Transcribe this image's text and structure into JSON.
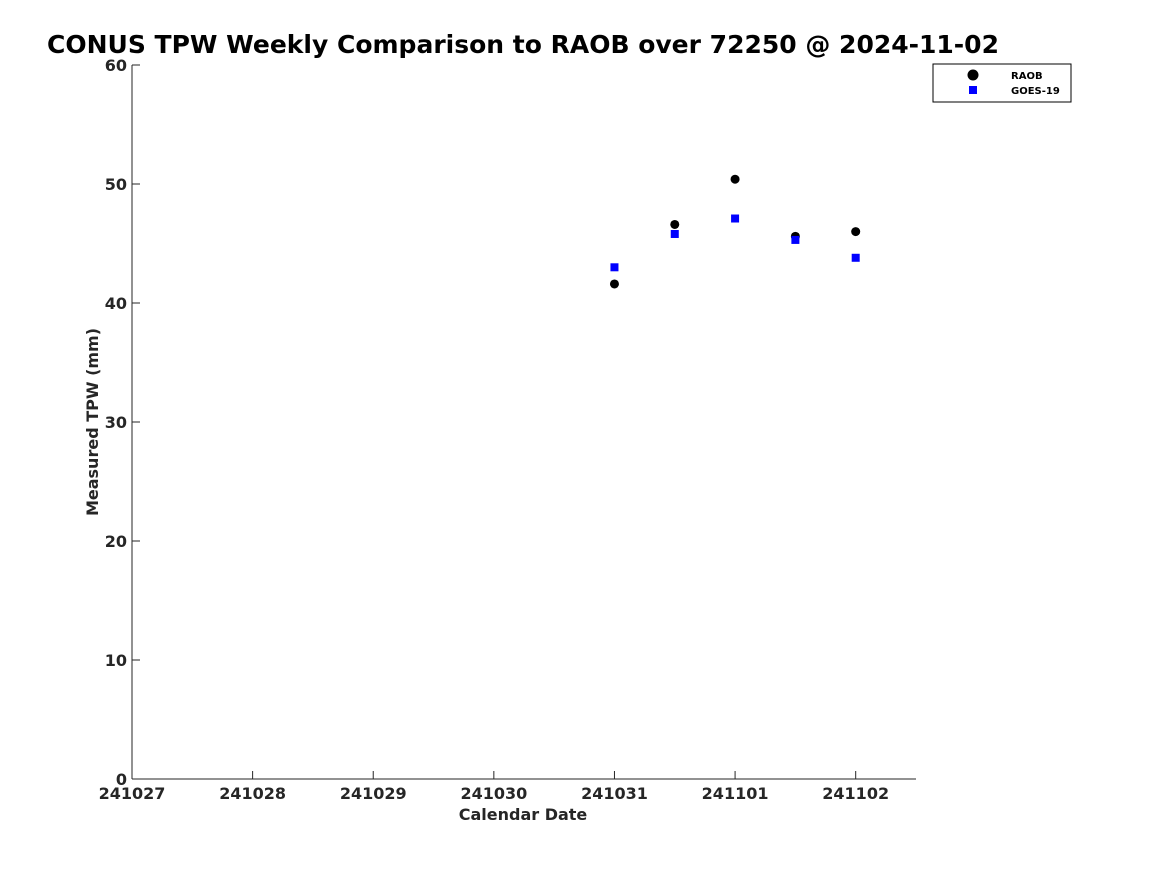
{
  "chart_data": {
    "type": "scatter",
    "title": "CONUS TPW Weekly Comparison to RAOB over 72250 @ 2024-11-02",
    "xlabel": "Calendar Date",
    "ylabel": "Measured TPW (mm)",
    "x_scale": "date",
    "xlim": [
      "2024-10-27",
      "2024-11-02 12:00"
    ],
    "ylim": [
      0,
      60
    ],
    "x_ticks": [
      {
        "date": "2024-10-27",
        "label": "241027"
      },
      {
        "date": "2024-10-28",
        "label": "241028"
      },
      {
        "date": "2024-10-29",
        "label": "241029"
      },
      {
        "date": "2024-10-30",
        "label": "241030"
      },
      {
        "date": "2024-10-31",
        "label": "241031"
      },
      {
        "date": "2024-11-01",
        "label": "241101"
      },
      {
        "date": "2024-11-02",
        "label": "241102"
      }
    ],
    "y_ticks": [
      0,
      10,
      20,
      30,
      40,
      50,
      60
    ],
    "grid": false,
    "legend_position": "top-right",
    "series": [
      {
        "name": "RAOB",
        "marker": "circle",
        "color": "#000000",
        "points": [
          {
            "x": "2024-10-31 00:00",
            "y": 41.6
          },
          {
            "x": "2024-10-31 12:00",
            "y": 46.6
          },
          {
            "x": "2024-11-01 00:00",
            "y": 50.4
          },
          {
            "x": "2024-11-01 12:00",
            "y": 45.6
          },
          {
            "x": "2024-11-02 00:00",
            "y": 46.0
          }
        ]
      },
      {
        "name": "GOES-19",
        "marker": "square",
        "color": "#0000ff",
        "points": [
          {
            "x": "2024-10-31 00:00",
            "y": 43.0
          },
          {
            "x": "2024-10-31 12:00",
            "y": 45.8
          },
          {
            "x": "2024-11-01 00:00",
            "y": 47.1
          },
          {
            "x": "2024-11-01 12:00",
            "y": 45.3
          },
          {
            "x": "2024-11-02 00:00",
            "y": 43.8
          }
        ]
      }
    ]
  }
}
